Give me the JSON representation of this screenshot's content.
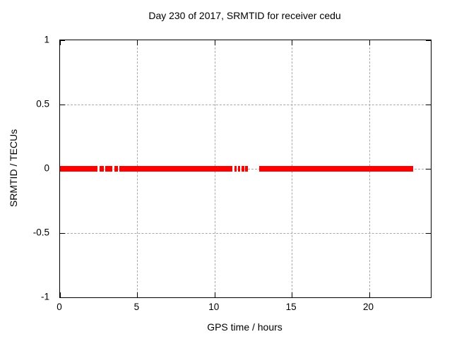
{
  "title": "Day 230 of 2017, SRMTID for receiver cedu",
  "colors": {
    "background": "#ffffff",
    "axis": "#000000",
    "grid": "#a9a9a9",
    "data": "#ff0000"
  },
  "chart_data": {
    "type": "scatter",
    "title": "Day 230 of 2017, SRMTID for receiver cedu",
    "xlabel": "GPS time / hours",
    "ylabel": "SRMTID / TECUs",
    "xlim": [
      0,
      24
    ],
    "ylim": [
      -1,
      1
    ],
    "grid": true,
    "x_ticks": [
      0,
      5,
      10,
      15,
      20
    ],
    "x_tick_labels": [
      "0",
      "5",
      "10",
      "15",
      "20"
    ],
    "y_ticks": [
      1,
      0.5,
      0,
      -0.5,
      -1
    ],
    "y_tick_labels": [
      "1",
      "0.5",
      "0",
      "-0.5",
      "-1"
    ],
    "series": [
      {
        "name": "SRMTID",
        "color": "#ff0000",
        "y_value": 0,
        "marker_band_height_px": 8,
        "segments_hours": [
          [
            0.0,
            2.42
          ],
          [
            2.56,
            2.83
          ],
          [
            2.93,
            3.38
          ],
          [
            3.52,
            3.75
          ],
          [
            3.84,
            11.15
          ],
          [
            11.28,
            11.43
          ],
          [
            11.53,
            11.67
          ],
          [
            11.76,
            11.93
          ],
          [
            11.98,
            12.16
          ],
          [
            12.89,
            22.86
          ]
        ]
      }
    ]
  }
}
